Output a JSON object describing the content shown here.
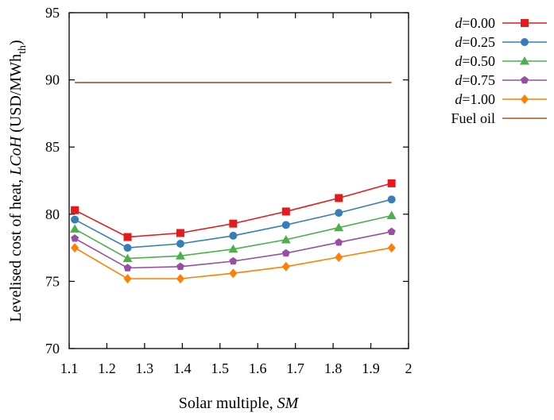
{
  "chart_data": {
    "type": "line",
    "xlabel": "Solar multiple, ",
    "xlabel_var": "SM",
    "ylabel_prefix": "Levelised cost of heat, ",
    "ylabel_var": "LCoH",
    "ylabel_unit": " (USD/MWh",
    "ylabel_sub": "th",
    "ylabel_close": ")",
    "xlim": [
      1.1,
      2.0
    ],
    "ylim": [
      70,
      95
    ],
    "x_ticks": [
      1.1,
      1.2,
      1.3,
      1.4,
      1.5,
      1.6,
      1.7,
      1.8,
      1.9,
      2.0
    ],
    "x_tick_labels": [
      "1.1",
      "1.2",
      "1.3",
      "1.4",
      "1.5",
      "1.6",
      "1.7",
      "1.8",
      "1.9",
      "2"
    ],
    "y_ticks": [
      70,
      75,
      80,
      85,
      90,
      95
    ],
    "y_tick_labels": [
      "70",
      "75",
      "80",
      "85",
      "90",
      "95"
    ],
    "grid": false,
    "legend_position": "outside-top-right",
    "x": [
      1.115,
      1.255,
      1.395,
      1.535,
      1.675,
      1.815,
      1.955
    ],
    "series": [
      {
        "name": "d=0.00",
        "name_var": "d",
        "name_value": "=0.00",
        "color": "#e41a1c",
        "marker": "square",
        "values": [
          80.3,
          78.3,
          78.6,
          79.3,
          80.2,
          81.2,
          82.3
        ]
      },
      {
        "name": "d=0.25",
        "name_var": "d",
        "name_value": "=0.25",
        "color": "#377eb8",
        "marker": "circle",
        "values": [
          79.6,
          77.5,
          77.8,
          78.4,
          79.2,
          80.1,
          81.1
        ]
      },
      {
        "name": "d=0.50",
        "name_var": "d",
        "name_value": "=0.50",
        "color": "#4daf4a",
        "marker": "triangle",
        "values": [
          78.9,
          76.7,
          76.9,
          77.4,
          78.1,
          79.0,
          79.9
        ]
      },
      {
        "name": "d=0.75",
        "name_var": "d",
        "name_value": "=0.75",
        "color": "#984ea3",
        "marker": "pentagon",
        "values": [
          78.2,
          76.0,
          76.1,
          76.5,
          77.1,
          77.9,
          78.7
        ]
      },
      {
        "name": "d=1.00",
        "name_var": "d",
        "name_value": "=1.00",
        "color": "#ff7f00",
        "marker": "diamond",
        "values": [
          77.5,
          75.2,
          75.2,
          75.6,
          76.1,
          76.8,
          77.5
        ]
      }
    ],
    "reference_line": {
      "name": "Fuel oil",
      "color": "#a65628",
      "y": 89.8,
      "x_range": [
        1.115,
        1.955
      ]
    }
  }
}
